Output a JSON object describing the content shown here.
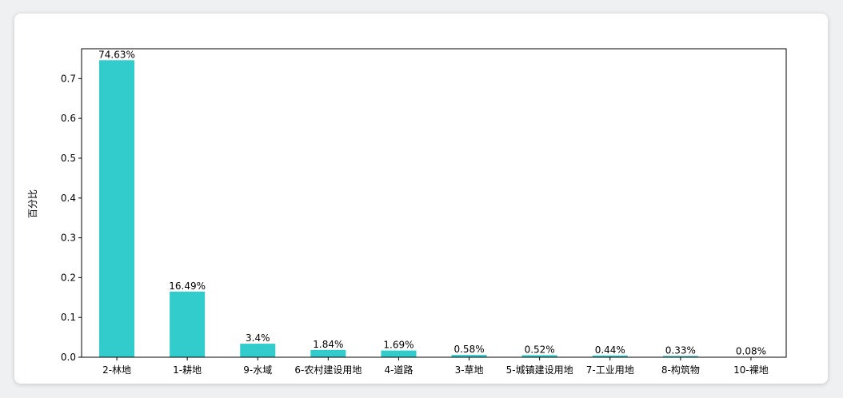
{
  "chart_data": {
    "type": "bar",
    "title": "",
    "xlabel": "",
    "ylabel": "百分比",
    "ylim": [
      0,
      0.775
    ],
    "yticks": [
      "0.0",
      "0.1",
      "0.2",
      "0.3",
      "0.4",
      "0.5",
      "0.6",
      "0.7"
    ],
    "ytick_values": [
      0,
      0.1,
      0.2,
      0.3,
      0.4,
      0.5,
      0.6,
      0.7
    ],
    "categories": [
      "2-林地",
      "1-耕地",
      "9-水域",
      "6-农村建设用地",
      "4-道路",
      "3-草地",
      "5-城镇建设用地",
      "7-工业用地",
      "8-构筑物",
      "10-裸地"
    ],
    "values": [
      0.7463,
      0.1649,
      0.034,
      0.0184,
      0.0169,
      0.0058,
      0.0052,
      0.0044,
      0.0033,
      0.0008
    ],
    "data_labels": [
      "74.63%",
      "16.49%",
      "3.4%",
      "1.84%",
      "1.69%",
      "0.58%",
      "0.52%",
      "0.44%",
      "0.33%",
      "0.08%"
    ],
    "bar_color": "#33cccc",
    "grid": false,
    "legend": "none"
  }
}
